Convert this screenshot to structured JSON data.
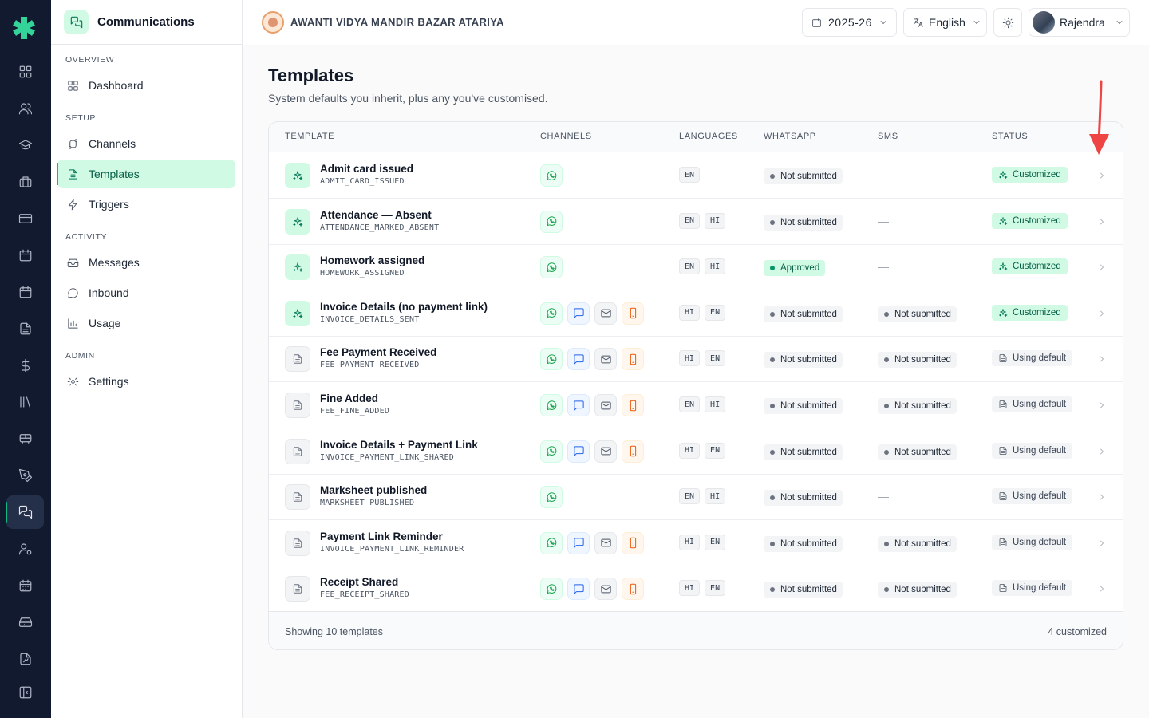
{
  "sidebar": {
    "title": "Communications",
    "sections": {
      "overview": "OVERVIEW",
      "setup": "SETUP",
      "activity": "ACTIVITY",
      "admin": "ADMIN"
    },
    "items": {
      "dashboard": "Dashboard",
      "channels": "Channels",
      "templates": "Templates",
      "triggers": "Triggers",
      "messages": "Messages",
      "inbound": "Inbound",
      "usage": "Usage",
      "settings": "Settings"
    }
  },
  "topbar": {
    "school_name": "AWANTI VIDYA MANDIR BAZAR ATARIYA",
    "year": "2025-26",
    "language": "English",
    "user": "Rajendra"
  },
  "page": {
    "title": "Templates",
    "subtitle": "System defaults you inherit, plus any you've customised."
  },
  "table": {
    "headers": {
      "template": "TEMPLATE",
      "channels": "CHANNELS",
      "languages": "LANGUAGES",
      "whatsapp": "WHATSAPP",
      "sms": "SMS",
      "status": "STATUS"
    },
    "rows": [
      {
        "name": "Admit card issued",
        "code": "ADMIT_CARD_ISSUED",
        "custom": true,
        "channels": [
          "whatsapp"
        ],
        "languages": [
          "EN"
        ],
        "whatsapp": "Not submitted",
        "wa_ok": false,
        "sms": "—",
        "status": "Customized"
      },
      {
        "name": "Attendance — Absent",
        "code": "ATTENDANCE_MARKED_ABSENT",
        "custom": true,
        "channels": [
          "whatsapp"
        ],
        "languages": [
          "EN",
          "HI"
        ],
        "whatsapp": "Not submitted",
        "wa_ok": false,
        "sms": "—",
        "status": "Customized"
      },
      {
        "name": "Homework assigned",
        "code": "HOMEWORK_ASSIGNED",
        "custom": true,
        "channels": [
          "whatsapp"
        ],
        "languages": [
          "EN",
          "HI"
        ],
        "whatsapp": "Approved",
        "wa_ok": true,
        "sms": "—",
        "status": "Customized"
      },
      {
        "name": "Invoice Details (no payment link)",
        "code": "INVOICE_DETAILS_SENT",
        "custom": true,
        "channels": [
          "whatsapp",
          "sms",
          "email",
          "push"
        ],
        "languages": [
          "HI",
          "EN"
        ],
        "whatsapp": "Not submitted",
        "wa_ok": false,
        "sms": "Not submitted",
        "status": "Customized"
      },
      {
        "name": "Fee Payment Received",
        "code": "FEE_PAYMENT_RECEIVED",
        "custom": false,
        "channels": [
          "whatsapp",
          "sms",
          "email",
          "push"
        ],
        "languages": [
          "HI",
          "EN"
        ],
        "whatsapp": "Not submitted",
        "wa_ok": false,
        "sms": "Not submitted",
        "status": "Using default"
      },
      {
        "name": "Fine Added",
        "code": "FEE_FINE_ADDED",
        "custom": false,
        "channels": [
          "whatsapp",
          "sms",
          "email",
          "push"
        ],
        "languages": [
          "EN",
          "HI"
        ],
        "whatsapp": "Not submitted",
        "wa_ok": false,
        "sms": "Not submitted",
        "status": "Using default"
      },
      {
        "name": "Invoice Details + Payment Link",
        "code": "INVOICE_PAYMENT_LINK_SHARED",
        "custom": false,
        "channels": [
          "whatsapp",
          "sms",
          "email",
          "push"
        ],
        "languages": [
          "HI",
          "EN"
        ],
        "whatsapp": "Not submitted",
        "wa_ok": false,
        "sms": "Not submitted",
        "status": "Using default"
      },
      {
        "name": "Marksheet published",
        "code": "MARKSHEET_PUBLISHED",
        "custom": false,
        "channels": [
          "whatsapp"
        ],
        "languages": [
          "EN",
          "HI"
        ],
        "whatsapp": "Not submitted",
        "wa_ok": false,
        "sms": "—",
        "status": "Using default"
      },
      {
        "name": "Payment Link Reminder",
        "code": "INVOICE_PAYMENT_LINK_REMINDER",
        "custom": false,
        "channels": [
          "whatsapp",
          "sms",
          "email",
          "push"
        ],
        "languages": [
          "HI",
          "EN"
        ],
        "whatsapp": "Not submitted",
        "wa_ok": false,
        "sms": "Not submitted",
        "status": "Using default"
      },
      {
        "name": "Receipt Shared",
        "code": "FEE_RECEIPT_SHARED",
        "custom": false,
        "channels": [
          "whatsapp",
          "sms",
          "email",
          "push"
        ],
        "languages": [
          "HI",
          "EN"
        ],
        "whatsapp": "Not submitted",
        "wa_ok": false,
        "sms": "Not submitted",
        "status": "Using default"
      }
    ],
    "footer_left": "Showing 10 templates",
    "footer_right": "4 customized"
  },
  "colors": {
    "accent": "#10b981",
    "rail_bg": "#111a2e",
    "annotation_arrow": "#ef4444"
  }
}
